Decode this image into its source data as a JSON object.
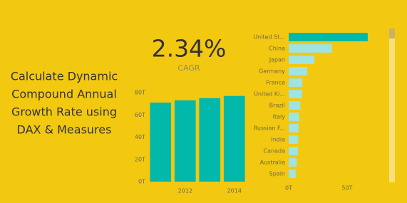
{
  "headline": {
    "lines": [
      "Calculate Dynamic",
      "Compound Annual",
      "Growth Rate using",
      "DAX & Measures"
    ]
  },
  "kpi": {
    "value": "2.34%",
    "label": "CAGR"
  },
  "chart_data": [
    {
      "type": "bar",
      "categories": [
        null,
        "2012",
        null,
        "2014"
      ],
      "values": [
        71,
        73,
        75,
        77
      ],
      "color": "#01b8aa",
      "ylim": [
        0,
        80
      ],
      "yticks": [
        {
          "value": 0,
          "label": "0T"
        },
        {
          "value": 20,
          "label": "20T"
        },
        {
          "value": 40,
          "label": "40T"
        },
        {
          "value": 60,
          "label": "60T"
        },
        {
          "value": 80,
          "label": "80T"
        }
      ]
    },
    {
      "type": "barh",
      "categories": [
        "United St...",
        "China",
        "Japan",
        "Germany",
        "France",
        "United Ki...",
        "Brazil",
        "Italy",
        "Russian F...",
        "India",
        "Canada",
        "Australia",
        "Spain"
      ],
      "values": [
        67.7,
        37,
        22,
        16,
        11.6,
        11.5,
        10,
        9,
        8.5,
        8,
        8,
        7,
        6
      ],
      "colors": [
        "#01b8aa",
        "#9fe3e2",
        "#9fe3e2",
        "#9fe3e2",
        "#9fe3e2",
        "#9fe3e2",
        "#9fe3e2",
        "#9fe3e2",
        "#9fe3e2",
        "#9fe3e2",
        "#9fe3e2",
        "#9fe3e2",
        "#9fe3e2"
      ],
      "xlim": [
        0,
        80
      ],
      "xticks": [
        {
          "value": 0,
          "label": "0T"
        },
        {
          "value": 50,
          "label": "50T"
        }
      ]
    }
  ]
}
